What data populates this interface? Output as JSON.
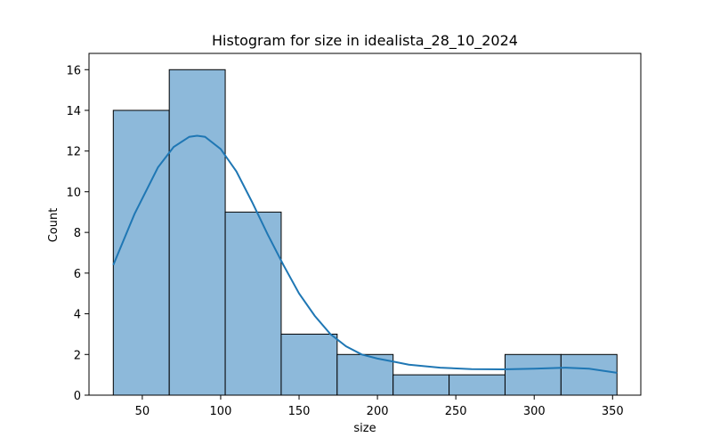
{
  "chart_data": {
    "type": "bar",
    "title": "Histogram for size in idealista_28_10_2024",
    "xlabel": "size",
    "ylabel": "Count",
    "xlim": [
      16,
      368
    ],
    "ylim": [
      0,
      16.8
    ],
    "bin_edges": [
      31.5,
      67.2,
      102.9,
      138.6,
      174.3,
      210.0,
      245.7,
      281.4,
      317.1,
      352.8
    ],
    "counts": [
      14,
      16,
      9,
      3,
      2,
      1,
      1,
      2,
      2
    ],
    "x_ticks": [
      50,
      100,
      150,
      200,
      250,
      300,
      350
    ],
    "y_ticks": [
      0,
      2,
      4,
      6,
      8,
      10,
      12,
      14,
      16
    ],
    "kde": {
      "x": [
        31.5,
        45,
        60,
        70,
        80,
        85,
        90,
        100,
        110,
        120,
        130,
        140,
        150,
        160,
        170,
        180,
        190,
        200,
        210,
        220,
        240,
        260,
        280,
        300,
        320,
        335,
        352.8
      ],
      "y": [
        6.4,
        8.9,
        11.2,
        12.2,
        12.7,
        12.75,
        12.7,
        12.1,
        11.0,
        9.5,
        7.9,
        6.4,
        5.0,
        3.9,
        3.0,
        2.4,
        2.0,
        1.8,
        1.65,
        1.5,
        1.35,
        1.28,
        1.27,
        1.3,
        1.35,
        1.3,
        1.1
      ]
    },
    "bar_color": "#8db9da",
    "line_color": "#1f77b4",
    "grid": false,
    "legend": "none"
  }
}
